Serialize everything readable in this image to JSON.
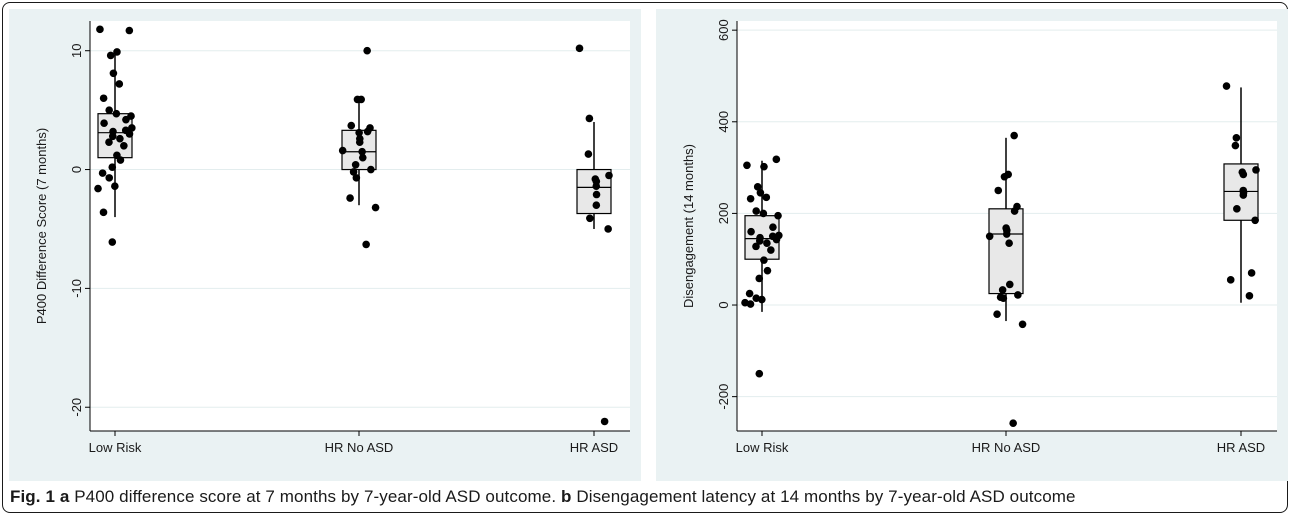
{
  "caption": {
    "a_label": "Fig. 1",
    "a_letter": "a",
    "a_text": "P400 difference score at 7 months by 7-year-old ASD outcome.",
    "b_letter": "b",
    "b_text": "Disengagement latency at 14 months by 7-year-old ASD outcome"
  },
  "colors": {
    "panel_bg": "#eaf2f3",
    "plot_bg": "#ffffff",
    "box_fill": "#e8e8e8",
    "point": "#000000",
    "grid": "#e3edee"
  },
  "chart_data": [
    {
      "type": "box",
      "ylabel": "P400 Difference Score (7 months)",
      "ylim": [
        -22,
        12.5
      ],
      "yticks": [
        10,
        0,
        -10,
        -20
      ],
      "ytick_labels": [
        "10",
        "0",
        "-10",
        "-20"
      ],
      "grid": true,
      "categories": [
        "Low Risk",
        "HR No ASD",
        "HR ASD"
      ],
      "boxes": [
        {
          "category": "Low Risk",
          "whisker_low": -4,
          "q1": 1,
          "median": 3.1,
          "q3": 4.7,
          "whisker_high": 10
        },
        {
          "category": "HR No ASD",
          "whisker_low": -3,
          "q1": 0,
          "median": 1.5,
          "q3": 3.3,
          "whisker_high": 6
        },
        {
          "category": "HR ASD",
          "whisker_low": -5,
          "q1": -3.7,
          "median": -1.5,
          "q3": 0,
          "whisker_high": 4
        }
      ],
      "points": [
        {
          "category": "Low Risk",
          "values": [
            11.7,
            11.8,
            9.9,
            9.6,
            8.1,
            7.2,
            6,
            5,
            4.7,
            4.5,
            4.2,
            3.9,
            3.5,
            3.3,
            3.2,
            3,
            2.8,
            2.6,
            2.3,
            2,
            1.2,
            0.8,
            0.2,
            -0.3,
            -0.7,
            -1.4,
            -1.6,
            -3.6,
            -6.1
          ]
        },
        {
          "category": "HR No ASD",
          "values": [
            10,
            5.9,
            5.9,
            3.7,
            3.5,
            3.2,
            3.1,
            2.6,
            2.3,
            1.6,
            1.5,
            1,
            0.4,
            0,
            -0.2,
            -0.7,
            -2.4,
            -3.2,
            -6.3
          ]
        },
        {
          "category": "HR ASD",
          "values": [
            10.2,
            4.3,
            1.3,
            -0.5,
            -0.8,
            -1,
            -1.4,
            -2.1,
            -3,
            -4.1,
            -5,
            -21.2
          ]
        }
      ]
    },
    {
      "type": "box",
      "ylabel": "Disengagement (14 months)",
      "ylim": [
        -275,
        620
      ],
      "yticks": [
        600,
        400,
        200,
        0,
        -200
      ],
      "ytick_labels": [
        "600",
        "400",
        "200",
        "0",
        "-200"
      ],
      "grid": true,
      "categories": [
        "Low Risk",
        "HR No ASD",
        "HR ASD"
      ],
      "boxes": [
        {
          "category": "Low Risk",
          "whisker_low": -15,
          "q1": 100,
          "median": 145,
          "q3": 195,
          "whisker_high": 315
        },
        {
          "category": "HR No ASD",
          "whisker_low": -35,
          "q1": 25,
          "median": 155,
          "q3": 210,
          "whisker_high": 365
        },
        {
          "category": "HR ASD",
          "whisker_low": 5,
          "q1": 185,
          "median": 248,
          "q3": 308,
          "whisker_high": 475
        }
      ],
      "points": [
        {
          "category": "Low Risk",
          "values": [
            318,
            305,
            302,
            258,
            245,
            235,
            232,
            205,
            200,
            195,
            170,
            160,
            152,
            150,
            147,
            143,
            140,
            135,
            128,
            120,
            98,
            75,
            58,
            25,
            15,
            12,
            5,
            2,
            -150
          ]
        },
        {
          "category": "HR No ASD",
          "values": [
            370,
            285,
            280,
            250,
            215,
            205,
            168,
            163,
            155,
            150,
            135,
            45,
            33,
            22,
            17,
            15,
            -20,
            -42,
            -258
          ]
        },
        {
          "category": "HR ASD",
          "values": [
            478,
            365,
            348,
            295,
            290,
            285,
            250,
            245,
            240,
            210,
            185,
            70,
            55,
            20
          ]
        }
      ]
    }
  ]
}
